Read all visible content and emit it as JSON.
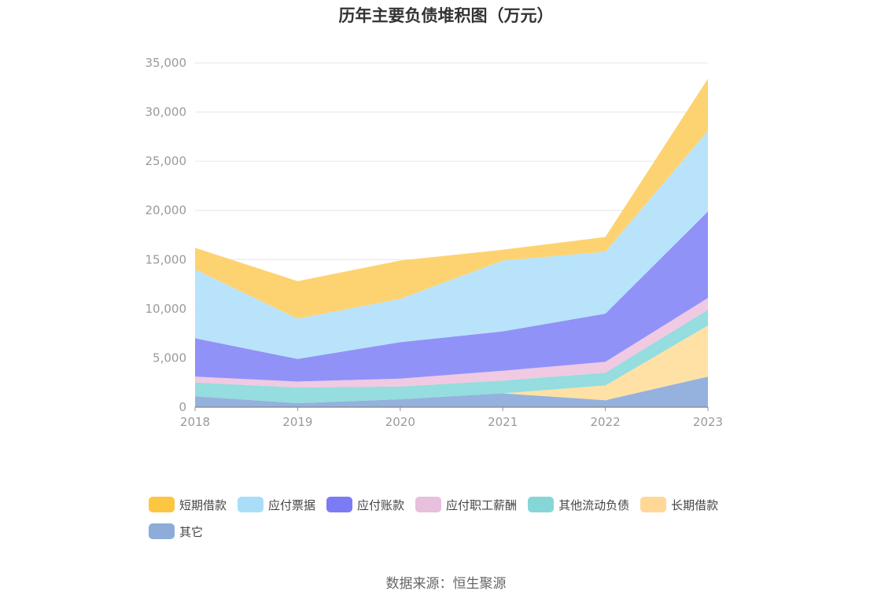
{
  "chart_data": {
    "type": "area",
    "stacked": true,
    "title": "历年主要负债堆积图（万元）",
    "x": [
      "2018",
      "2019",
      "2020",
      "2021",
      "2022",
      "2023"
    ],
    "ylim": [
      0,
      35000
    ],
    "yticks": [
      "0",
      "5,000",
      "10,000",
      "15,000",
      "20,000",
      "25,000",
      "30,000",
      "35,000"
    ],
    "ytick_values": [
      0,
      5000,
      10000,
      15000,
      20000,
      25000,
      30000,
      35000
    ],
    "grid": true,
    "legend_position": "bottom",
    "series": [
      {
        "name": "其它",
        "color": "#8eaedb",
        "values": [
          1100,
          400,
          800,
          1400,
          700,
          3100
        ]
      },
      {
        "name": "长期借款",
        "color": "#ffdfa0",
        "values": [
          0,
          0,
          0,
          0,
          1500,
          5200
        ]
      },
      {
        "name": "其他流动负债",
        "color": "#8fdbdc",
        "values": [
          1400,
          1600,
          1300,
          1300,
          1300,
          1600
        ]
      },
      {
        "name": "应付职工薪酬",
        "color": "#efc6e1",
        "values": [
          600,
          600,
          800,
          1000,
          1100,
          1200
        ]
      },
      {
        "name": "应付账款",
        "color": "#8b8cf7",
        "values": [
          3900,
          2300,
          3700,
          4000,
          4900,
          8800
        ]
      },
      {
        "name": "应付票据",
        "color": "#b5e1fa",
        "values": [
          7000,
          4100,
          4400,
          7200,
          6300,
          8200
        ]
      },
      {
        "name": "短期借款",
        "color": "#fdd16a",
        "values": [
          2200,
          3800,
          3900,
          1100,
          1500,
          5300
        ]
      }
    ]
  },
  "legend": {
    "items": [
      {
        "label": "短期借款",
        "color": "#fdc641"
      },
      {
        "label": "应付票据",
        "color": "#a9def9"
      },
      {
        "label": "应付账款",
        "color": "#7b7cf5"
      },
      {
        "label": "应付职工薪酬",
        "color": "#e8bfdc"
      },
      {
        "label": "其他流动负债",
        "color": "#86d6d8"
      },
      {
        "label": "长期借款",
        "color": "#ffd898"
      },
      {
        "label": "其它",
        "color": "#8dacd9"
      }
    ]
  },
  "source": "数据来源：恒生聚源"
}
